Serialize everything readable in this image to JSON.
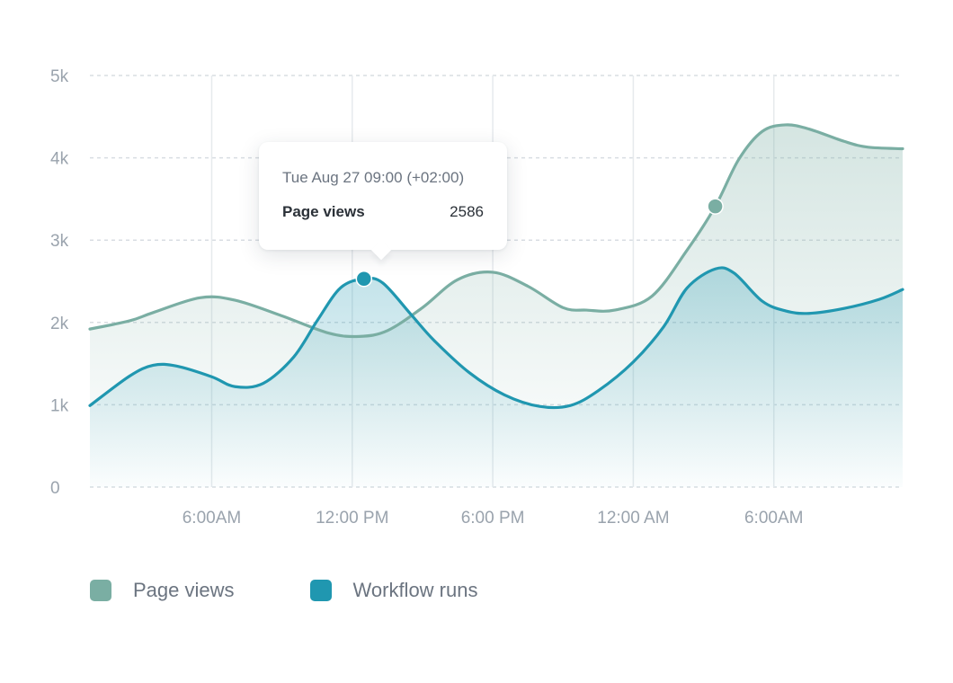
{
  "chart_data": {
    "type": "area",
    "y_ticks": [
      "0",
      "1k",
      "2k",
      "3k",
      "4k",
      "5k"
    ],
    "ylim": [
      0,
      5000
    ],
    "x_ticks": [
      "6:00AM",
      "12:00 PM",
      "6:00 PM",
      "12:00 AM",
      "6:00AM"
    ],
    "x_tick_hours": [
      6,
      12,
      18,
      24,
      30
    ],
    "xlim_hours": [
      0.8,
      35.5
    ],
    "grid": true,
    "legend_position": "bottom-left",
    "series": [
      {
        "name": "Page views",
        "color": "#7aaea3",
        "points": [
          [
            0.8,
            1920
          ],
          [
            2.5,
            2020
          ],
          [
            3.5,
            2120
          ],
          [
            5.5,
            2300
          ],
          [
            7,
            2270
          ],
          [
            9,
            2080
          ],
          [
            11,
            1870
          ],
          [
            12.3,
            1830
          ],
          [
            13.5,
            1900
          ],
          [
            15,
            2180
          ],
          [
            16.5,
            2520
          ],
          [
            18,
            2610
          ],
          [
            19.5,
            2440
          ],
          [
            21,
            2180
          ],
          [
            22,
            2150
          ],
          [
            23.2,
            2150
          ],
          [
            24.8,
            2320
          ],
          [
            26.3,
            2880
          ],
          [
            27.5,
            3410
          ],
          [
            28.5,
            3980
          ],
          [
            29.5,
            4320
          ],
          [
            30.5,
            4400
          ],
          [
            31.5,
            4350
          ],
          [
            33,
            4200
          ],
          [
            34,
            4130
          ],
          [
            35.5,
            4110
          ]
        ]
      },
      {
        "name": "Workflow runs",
        "color": "#2097b0",
        "points": [
          [
            0.8,
            990
          ],
          [
            2.5,
            1350
          ],
          [
            3.5,
            1480
          ],
          [
            4.5,
            1470
          ],
          [
            6,
            1340
          ],
          [
            7,
            1220
          ],
          [
            8.2,
            1260
          ],
          [
            9.5,
            1580
          ],
          [
            10.5,
            2020
          ],
          [
            11.5,
            2420
          ],
          [
            12.5,
            2530
          ],
          [
            13.3,
            2480
          ],
          [
            14.5,
            2100
          ],
          [
            15.5,
            1780
          ],
          [
            17,
            1390
          ],
          [
            18.5,
            1120
          ],
          [
            20,
            980
          ],
          [
            21.3,
            990
          ],
          [
            22.5,
            1170
          ],
          [
            24,
            1520
          ],
          [
            25.3,
            1950
          ],
          [
            26.3,
            2420
          ],
          [
            27.5,
            2650
          ],
          [
            28.3,
            2600
          ],
          [
            29.5,
            2260
          ],
          [
            30.5,
            2140
          ],
          [
            31.5,
            2110
          ],
          [
            33,
            2170
          ],
          [
            34.5,
            2280
          ],
          [
            35.5,
            2400
          ]
        ]
      }
    ],
    "markers": [
      {
        "series": "Workflow runs",
        "x_hour": 12.5,
        "y": 2530
      },
      {
        "series": "Page views",
        "x_hour": 27.5,
        "y": 3410
      }
    ]
  },
  "tooltip": {
    "date": "Tue Aug 27 09:00 (+02:00)",
    "label": "Page views",
    "value": "2586"
  },
  "legend": [
    {
      "label": "Page views",
      "color": "#7aaea3"
    },
    {
      "label": "Workflow runs",
      "color": "#2097b0"
    }
  ],
  "colors": {
    "grid": "#d8dde2",
    "axis_text": "#9aa3ad"
  }
}
